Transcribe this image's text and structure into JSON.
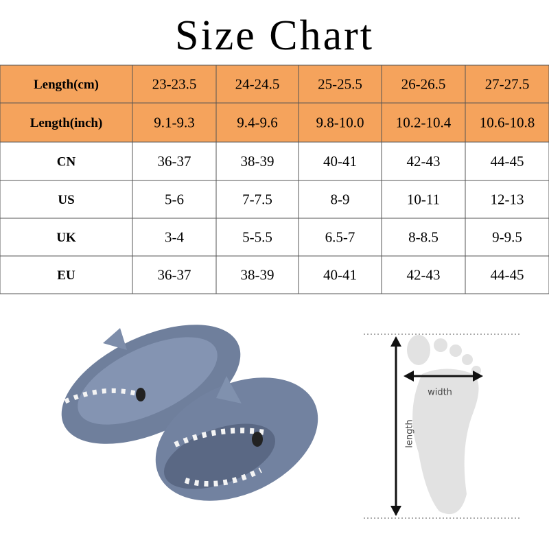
{
  "header": {
    "title": "Size Chart"
  },
  "table": {
    "rows": [
      [
        "Length(cm)",
        "23-23.5",
        "24-24.5",
        "25-25.5",
        "26-26.5",
        "27-27.5"
      ],
      [
        "Length(inch)",
        "9.1-9.3",
        "9.4-9.6",
        "9.8-10.0",
        "10.2-10.4",
        "10.6-10.8"
      ],
      [
        "CN",
        "36-37",
        "38-39",
        "40-41",
        "42-43",
        "44-45"
      ],
      [
        "US",
        "5-6",
        "7-7.5",
        "8-9",
        "10-11",
        "12-13"
      ],
      [
        "UK",
        "3-4",
        "5-5.5",
        "6.5-7",
        "8-8.5",
        "9-9.5"
      ],
      [
        "EU",
        "36-37",
        "38-39",
        "40-41",
        "42-43",
        "44-45"
      ]
    ]
  },
  "diagram": {
    "width_label": "width",
    "length_label": "length"
  }
}
